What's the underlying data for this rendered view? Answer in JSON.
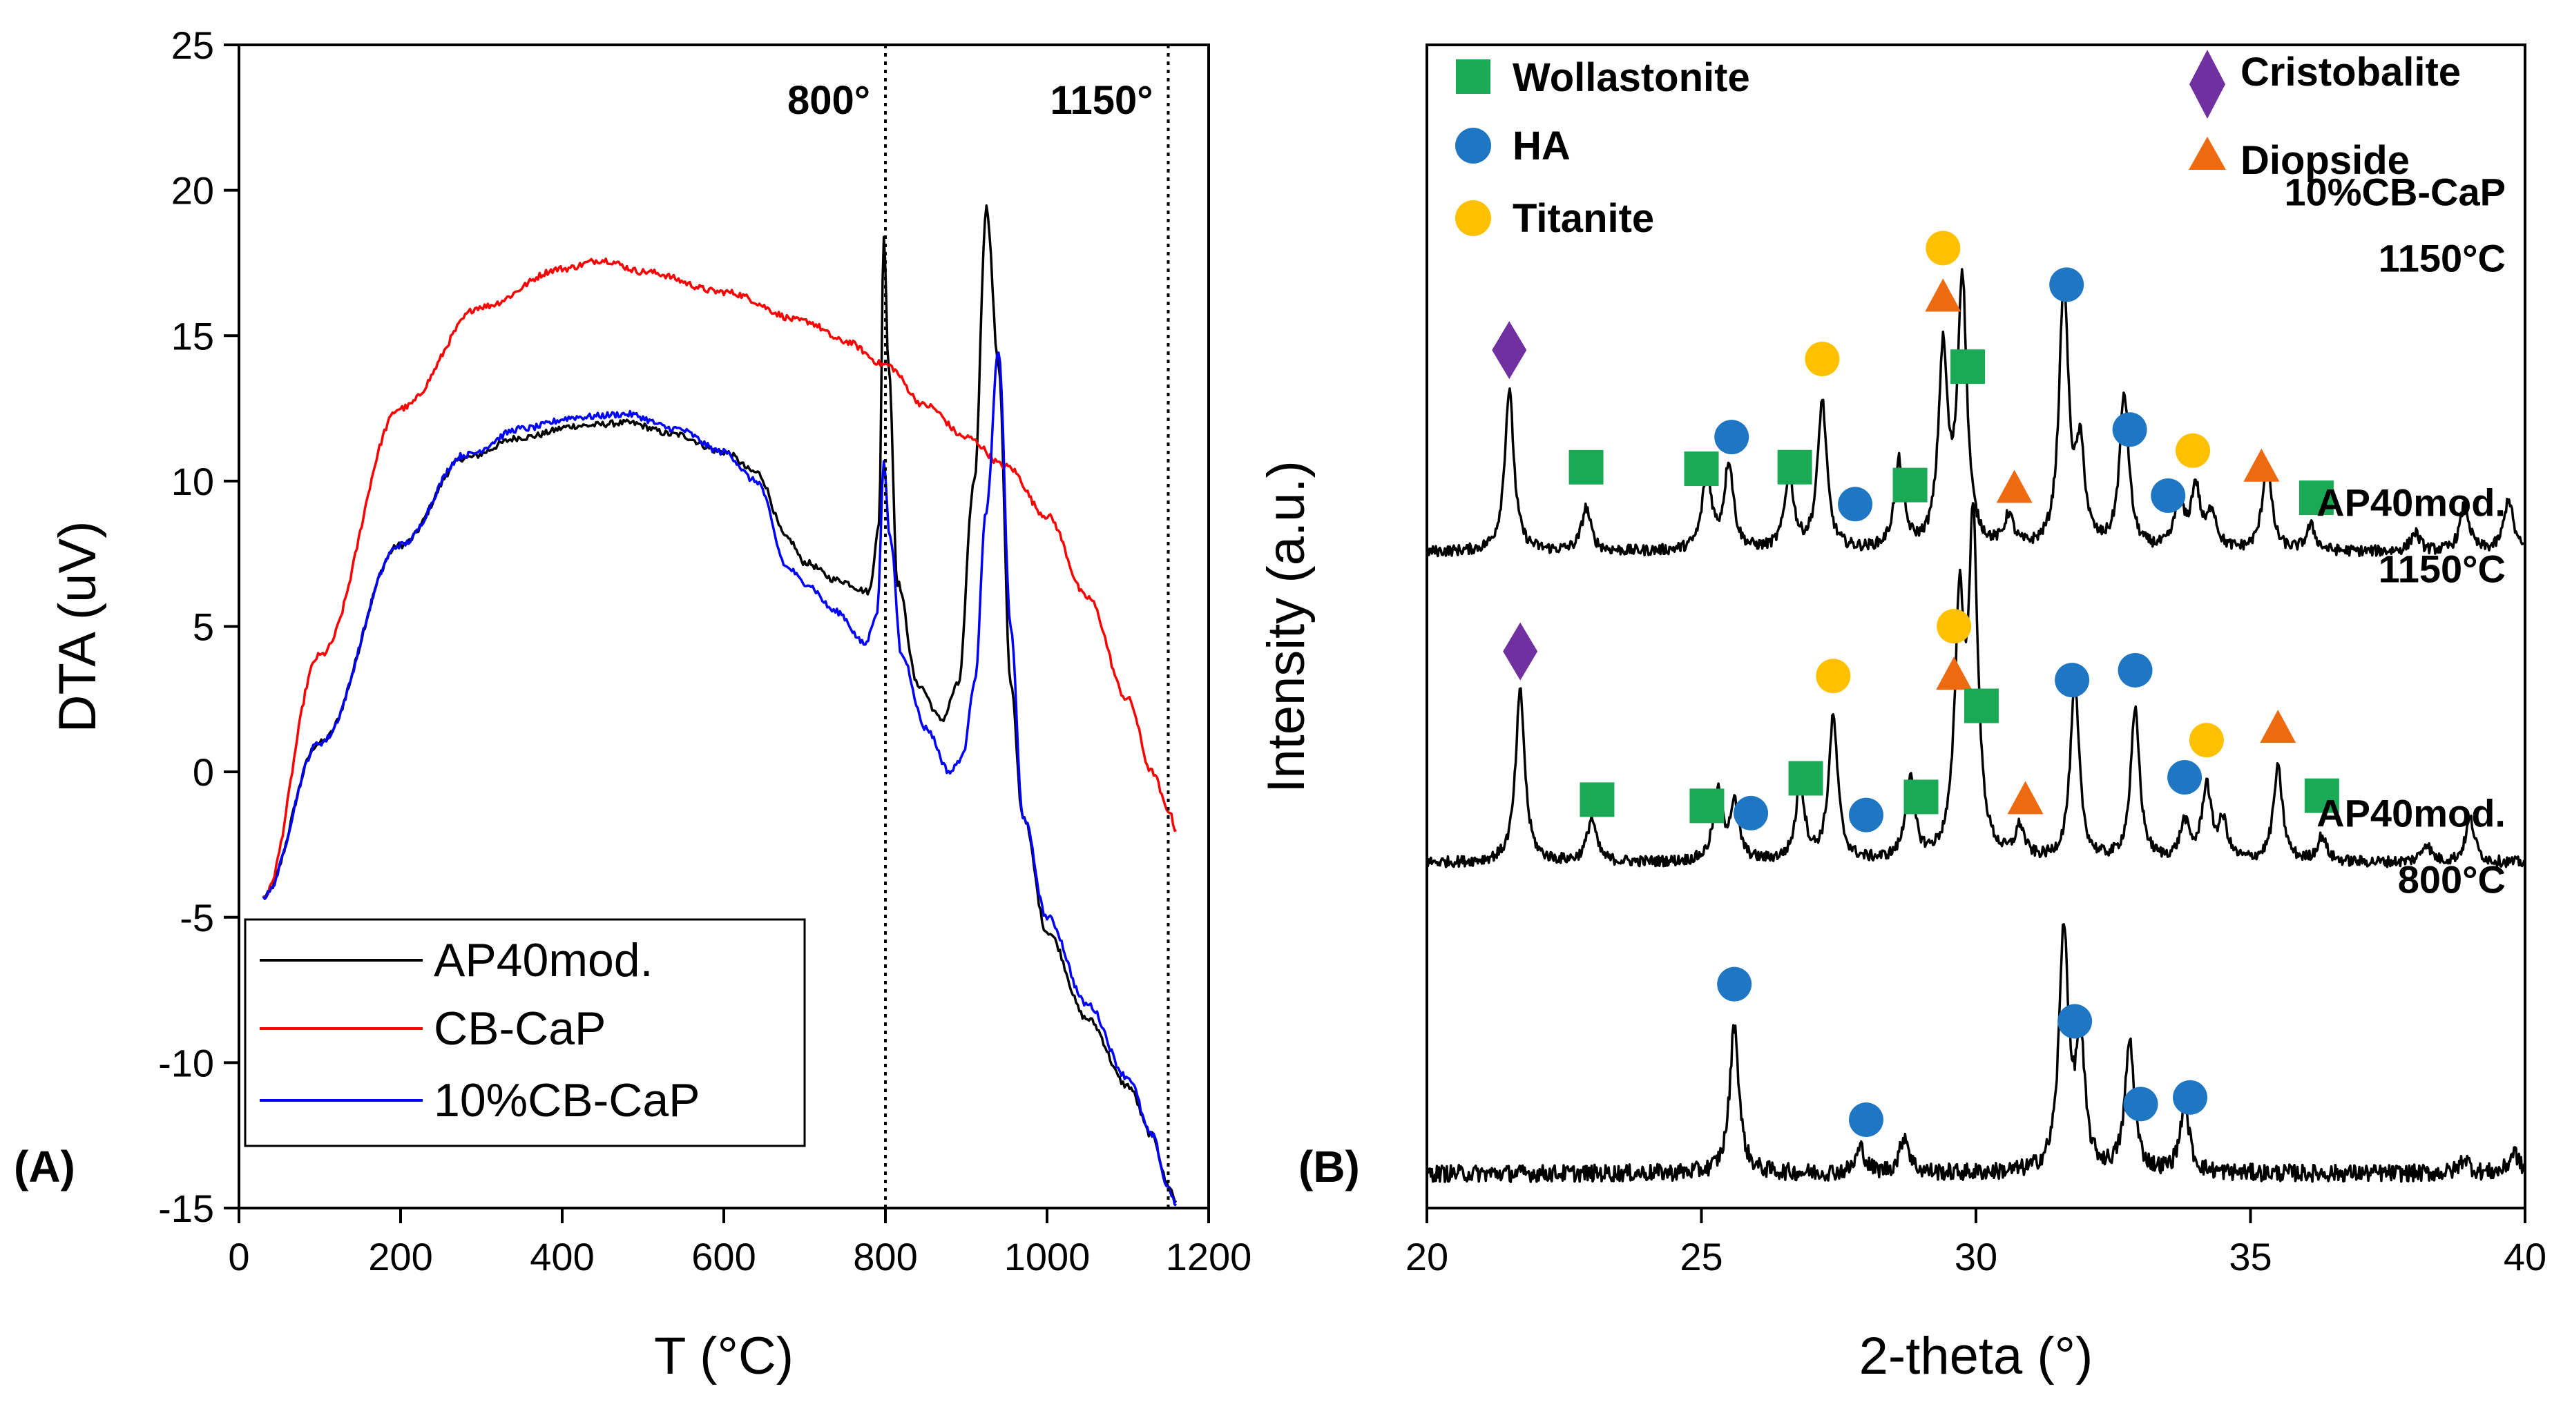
{
  "chart_data": [
    {
      "panel": "(A)",
      "type": "line",
      "xlabel": "T (°C)",
      "ylabel": "DTA (uV)",
      "xlim": [
        0,
        1200
      ],
      "ylim": [
        -15,
        25
      ],
      "x_ticks": [
        0,
        200,
        400,
        600,
        800,
        1000,
        1200
      ],
      "x_tick_labels": [
        "0",
        "200",
        "400",
        "600",
        "800",
        "1000",
        "1200"
      ],
      "y_ticks": [
        -15,
        -10,
        -5,
        0,
        5,
        10,
        15,
        20,
        25
      ],
      "y_tick_labels": [
        "-15",
        "-10",
        "-5",
        "0",
        "5",
        "10",
        "15",
        "20",
        "25"
      ],
      "grid": false,
      "legend_position": "bottom-left",
      "vlines": [
        {
          "x": 800,
          "label": "800°"
        },
        {
          "x": 1150,
          "label": "1150°"
        }
      ],
      "series": [
        {
          "name": "AP40mod.",
          "color": "#000000",
          "x": [
            30,
            100,
            200,
            280,
            350,
            420,
            480,
            540,
            600,
            640,
            680,
            700,
            740,
            780,
            792,
            798,
            804,
            815,
            840,
            870,
            890,
            910,
            925,
            940,
            955,
            970,
            1000,
            1050,
            1100,
            1130,
            1150,
            1160
          ],
          "y": [
            -4.3,
            1.0,
            7.8,
            10.8,
            11.5,
            11.9,
            12.0,
            11.6,
            11.0,
            10.3,
            8.0,
            7.2,
            6.6,
            6.2,
            8.5,
            18.4,
            14.0,
            6.5,
            3.0,
            1.8,
            3.0,
            10.0,
            19.4,
            14.0,
            3.0,
            -1.5,
            -5.5,
            -8.5,
            -10.8,
            -12.5,
            -14.2,
            -14.8
          ]
        },
        {
          "name": "CB-CaP",
          "color": "#ff0000",
          "x": [
            30,
            100,
            200,
            300,
            400,
            450,
            500,
            600,
            700,
            750,
            800,
            850,
            900,
            950,
            1000,
            1050,
            1100,
            1130,
            1150,
            1160
          ],
          "y": [
            -4.3,
            4.0,
            12.5,
            16.0,
            17.3,
            17.6,
            17.2,
            16.5,
            15.5,
            14.8,
            14.0,
            12.6,
            11.5,
            10.5,
            8.8,
            6.0,
            2.5,
            0.0,
            -1.3,
            -2.0
          ]
        },
        {
          "name": "10%CB-CaP",
          "color": "#0000ff",
          "x": [
            30,
            100,
            200,
            280,
            350,
            420,
            480,
            540,
            600,
            640,
            680,
            700,
            740,
            775,
            790,
            798,
            806,
            820,
            850,
            880,
            895,
            910,
            925,
            940,
            955,
            970,
            1000,
            1050,
            1100,
            1130,
            1150,
            1160
          ],
          "y": [
            -4.3,
            1.0,
            7.8,
            10.9,
            11.8,
            12.2,
            12.3,
            11.8,
            11.0,
            10.0,
            7.0,
            6.5,
            5.5,
            4.4,
            5.5,
            10.6,
            8.0,
            4.0,
            1.5,
            0.0,
            0.5,
            3.0,
            9.0,
            14.5,
            5.0,
            -1.5,
            -5.0,
            -8.0,
            -10.5,
            -12.5,
            -14.3,
            -14.9
          ]
        }
      ]
    },
    {
      "panel": "(B)",
      "type": "line",
      "xlabel": "2-theta (°)",
      "ylabel": "Intensity (a.u.)",
      "xlim": [
        20,
        40
      ],
      "x_ticks": [
        20,
        25,
        30,
        35,
        40
      ],
      "x_tick_labels": [
        "20",
        "25",
        "30",
        "35",
        "40"
      ],
      "grid": false,
      "legend_position": "top",
      "legend": [
        {
          "name": "Wollastonite",
          "marker": "square",
          "color": "#1aaa55"
        },
        {
          "name": "HA",
          "marker": "circle",
          "color": "#1f77c4"
        },
        {
          "name": "Titanite",
          "marker": "circle",
          "color": "#ffc000"
        },
        {
          "name": "Cristobalite",
          "marker": "diamond",
          "color": "#7030a0"
        },
        {
          "name": "Diopside",
          "marker": "triangle",
          "color": "#ee6a10"
        }
      ],
      "series": [
        {
          "name": "10%CB-CaP 1150°C",
          "label_lines": [
            "10%CB-CaP",
            "1150°C"
          ],
          "color": "#000000",
          "baseline": 0.0,
          "peaks": [
            [
              21.5,
              0.52
            ],
            [
              22.9,
              0.14
            ],
            [
              25.1,
              0.25
            ],
            [
              25.5,
              0.28
            ],
            [
              26.6,
              0.24
            ],
            [
              27.2,
              0.48
            ],
            [
              28.6,
              0.28
            ],
            [
              29.4,
              0.62
            ],
            [
              29.75,
              0.86
            ],
            [
              30.6,
              0.1
            ],
            [
              31.6,
              0.85
            ],
            [
              31.9,
              0.3
            ],
            [
              32.7,
              0.5
            ],
            [
              33.7,
              0.15
            ],
            [
              34.0,
              0.2
            ],
            [
              34.3,
              0.12
            ],
            [
              35.3,
              0.28
            ],
            [
              36.1,
              0.08
            ],
            [
              38.0,
              0.06
            ],
            [
              38.9,
              0.15
            ],
            [
              39.7,
              0.17
            ]
          ],
          "markers": [
            {
              "x": 21.5,
              "phase": "Cristobalite"
            },
            {
              "x": 22.9,
              "phase": "Wollastonite"
            },
            {
              "x": 25.0,
              "phase": "Wollastonite"
            },
            {
              "x": 25.55,
              "phase": "HA"
            },
            {
              "x": 26.7,
              "phase": "Wollastonite"
            },
            {
              "x": 27.2,
              "phase": "Titanite"
            },
            {
              "x": 27.8,
              "phase": "HA"
            },
            {
              "x": 28.8,
              "phase": "Wollastonite"
            },
            {
              "x": 29.4,
              "phase": "Diopside"
            },
            {
              "x": 29.4,
              "phase": "Titanite"
            },
            {
              "x": 29.85,
              "phase": "Wollastonite"
            },
            {
              "x": 30.7,
              "phase": "Diopside"
            },
            {
              "x": 31.65,
              "phase": "HA"
            },
            {
              "x": 32.8,
              "phase": "HA"
            },
            {
              "x": 33.5,
              "phase": "HA"
            },
            {
              "x": 33.95,
              "phase": "Titanite"
            },
            {
              "x": 35.2,
              "phase": "Diopside"
            },
            {
              "x": 36.2,
              "phase": "Wollastonite"
            }
          ]
        },
        {
          "name": "AP40mod. 1150°C",
          "label_lines": [
            "AP40mod.",
            "1150°C"
          ],
          "color": "#000000",
          "baseline": -1.0,
          "peaks": [
            [
              21.7,
              0.55
            ],
            [
              23.0,
              0.14
            ],
            [
              25.3,
              0.22
            ],
            [
              25.6,
              0.18
            ],
            [
              26.8,
              0.24
            ],
            [
              27.4,
              0.46
            ],
            [
              28.8,
              0.26
            ],
            [
              29.7,
              0.78
            ],
            [
              29.95,
              1.05
            ],
            [
              30.8,
              0.1
            ],
            [
              31.8,
              0.56
            ],
            [
              32.9,
              0.48
            ],
            [
              33.8,
              0.12
            ],
            [
              34.2,
              0.24
            ],
            [
              34.5,
              0.12
            ],
            [
              35.5,
              0.3
            ],
            [
              36.3,
              0.08
            ],
            [
              38.2,
              0.06
            ],
            [
              39.0,
              0.14
            ]
          ],
          "markers": [
            {
              "x": 21.7,
              "phase": "Cristobalite"
            },
            {
              "x": 23.1,
              "phase": "Wollastonite"
            },
            {
              "x": 25.1,
              "phase": "Wollastonite"
            },
            {
              "x": 25.9,
              "phase": "HA"
            },
            {
              "x": 26.9,
              "phase": "Wollastonite"
            },
            {
              "x": 27.4,
              "phase": "Titanite"
            },
            {
              "x": 28.0,
              "phase": "HA"
            },
            {
              "x": 29.0,
              "phase": "Wollastonite"
            },
            {
              "x": 29.6,
              "phase": "Diopside"
            },
            {
              "x": 29.6,
              "phase": "Titanite"
            },
            {
              "x": 30.1,
              "phase": "Wollastonite"
            },
            {
              "x": 30.9,
              "phase": "Diopside"
            },
            {
              "x": 31.75,
              "phase": "HA"
            },
            {
              "x": 32.9,
              "phase": "HA"
            },
            {
              "x": 33.8,
              "phase": "HA"
            },
            {
              "x": 34.2,
              "phase": "Titanite"
            },
            {
              "x": 35.5,
              "phase": "Diopside"
            },
            {
              "x": 36.3,
              "phase": "Wollastonite"
            }
          ]
        },
        {
          "name": "AP40mod. 800°C",
          "label_lines": [
            "AP40mod.",
            "800°C"
          ],
          "color": "#000000",
          "baseline": -2.0,
          "peaks": [
            [
              25.6,
              0.48
            ],
            [
              27.9,
              0.08
            ],
            [
              28.7,
              0.12
            ],
            [
              31.6,
              0.78
            ],
            [
              31.9,
              0.4
            ],
            [
              32.8,
              0.42
            ],
            [
              33.8,
              0.22
            ],
            [
              38.9,
              0.05
            ],
            [
              39.8,
              0.07
            ]
          ],
          "markers": [
            {
              "x": 25.6,
              "phase": "HA"
            },
            {
              "x": 28.0,
              "phase": "HA"
            },
            {
              "x": 31.8,
              "phase": "HA"
            },
            {
              "x": 33.0,
              "phase": "HA"
            },
            {
              "x": 33.9,
              "phase": "HA"
            }
          ]
        }
      ]
    }
  ]
}
